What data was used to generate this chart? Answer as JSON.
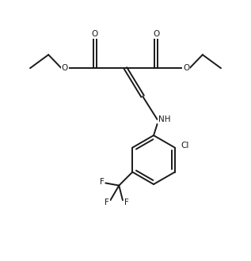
{
  "bg_color": "#ffffff",
  "line_color": "#1a1a1a",
  "line_width": 1.4,
  "font_size": 7.5,
  "fig_width": 3.17,
  "fig_height": 3.3,
  "dpi": 100,
  "xlim": [
    0,
    10
  ],
  "ylim": [
    0,
    10.5
  ]
}
